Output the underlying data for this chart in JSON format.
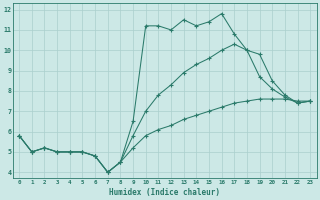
{
  "xlabel": "Humidex (Indice chaleur)",
  "xlim": [
    -0.5,
    23.5
  ],
  "ylim": [
    3.7,
    12.3
  ],
  "xticks": [
    0,
    1,
    2,
    3,
    4,
    5,
    6,
    7,
    8,
    9,
    10,
    11,
    12,
    13,
    14,
    15,
    16,
    17,
    18,
    19,
    20,
    21,
    22,
    23
  ],
  "yticks": [
    4,
    5,
    6,
    7,
    8,
    9,
    10,
    11,
    12
  ],
  "bg_color": "#cce8e6",
  "grid_color": "#aacfcd",
  "line_color": "#2a7a6a",
  "line1_x": [
    0,
    1,
    2,
    3,
    4,
    5,
    6,
    7,
    8,
    9,
    10,
    11,
    12,
    13,
    14,
    15,
    16,
    17,
    18,
    19,
    20,
    21,
    22,
    23
  ],
  "line1_y": [
    5.8,
    5.0,
    5.2,
    5.0,
    5.0,
    5.0,
    4.8,
    4.0,
    4.5,
    6.5,
    11.2,
    11.2,
    11.0,
    11.5,
    11.2,
    11.4,
    11.8,
    10.8,
    10.0,
    8.7,
    8.1,
    7.7,
    7.4,
    7.5
  ],
  "line2_x": [
    0,
    1,
    2,
    3,
    4,
    5,
    6,
    7,
    8,
    9,
    10,
    11,
    12,
    13,
    14,
    15,
    16,
    17,
    18,
    19,
    20,
    21,
    22,
    23
  ],
  "line2_y": [
    5.8,
    5.0,
    5.2,
    5.0,
    5.0,
    5.0,
    4.8,
    4.0,
    4.5,
    5.8,
    7.0,
    7.8,
    8.3,
    8.9,
    9.3,
    9.6,
    10.0,
    10.3,
    10.0,
    9.8,
    8.5,
    7.8,
    7.4,
    7.5
  ],
  "line3_x": [
    0,
    1,
    2,
    3,
    4,
    5,
    6,
    7,
    8,
    9,
    10,
    11,
    12,
    13,
    14,
    15,
    16,
    17,
    18,
    19,
    20,
    21,
    22,
    23
  ],
  "line3_y": [
    5.8,
    5.0,
    5.2,
    5.0,
    5.0,
    5.0,
    4.8,
    4.0,
    4.5,
    5.2,
    5.8,
    6.1,
    6.3,
    6.6,
    6.8,
    7.0,
    7.2,
    7.4,
    7.5,
    7.6,
    7.6,
    7.6,
    7.5,
    7.5
  ]
}
